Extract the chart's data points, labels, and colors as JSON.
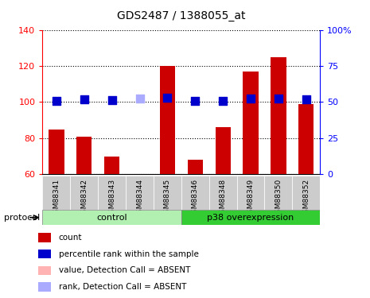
{
  "title": "GDS2487 / 1388055_at",
  "samples": [
    "GSM88341",
    "GSM88342",
    "GSM88343",
    "GSM88344",
    "GSM88345",
    "GSM88346",
    "GSM88348",
    "GSM88349",
    "GSM88350",
    "GSM88352"
  ],
  "bar_values": [
    85,
    81,
    70,
    null,
    120,
    68,
    86,
    117,
    125,
    99
  ],
  "bar_colors": [
    "#cc0000",
    "#cc0000",
    "#cc0000",
    "#ffb3b3",
    "#cc0000",
    "#cc0000",
    "#cc0000",
    "#cc0000",
    "#cc0000",
    "#cc0000"
  ],
  "rank_values": [
    50.6,
    51.9,
    51.3,
    52.5,
    52.8,
    50.6,
    50.6,
    52.5,
    52.5,
    51.9
  ],
  "rank_colors": [
    "#0000cc",
    "#0000cc",
    "#0000cc",
    "#aaaaff",
    "#0000cc",
    "#0000cc",
    "#0000cc",
    "#0000cc",
    "#0000cc",
    "#0000cc"
  ],
  "ylim_left": [
    60,
    140
  ],
  "ylim_right": [
    0,
    100
  ],
  "yticks_left": [
    60,
    80,
    100,
    120,
    140
  ],
  "yticks_right": [
    0,
    25,
    50,
    75,
    100
  ],
  "ytick_labels_right": [
    "0",
    "25",
    "50",
    "75",
    "100%"
  ],
  "control_n": 5,
  "overexpression_n": 5,
  "control_label": "control",
  "overexpression_label": "p38 overexpression",
  "protocol_label": "protocol",
  "control_color": "#b2f0b2",
  "overexpression_color": "#33cc33",
  "legend_items": [
    {
      "label": "count",
      "color": "#cc0000"
    },
    {
      "label": "percentile rank within the sample",
      "color": "#0000cc"
    },
    {
      "label": "value, Detection Call = ABSENT",
      "color": "#ffb3b3"
    },
    {
      "label": "rank, Detection Call = ABSENT",
      "color": "#aaaaff"
    }
  ],
  "bar_width": 0.55,
  "rank_marker_size": 45,
  "bg_color": "#ffffff",
  "xtick_bg": "#d0d0d0"
}
